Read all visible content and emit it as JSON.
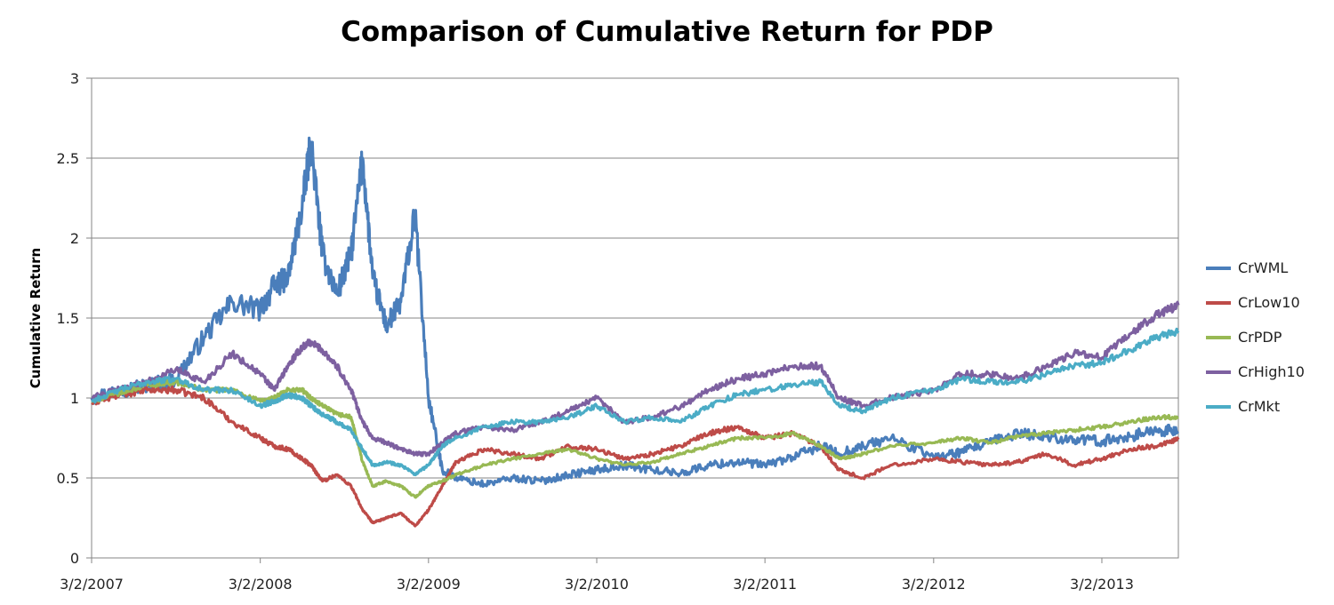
{
  "chart_data": {
    "type": "line",
    "title": "Comparison of Cumulative Return for PDP",
    "xlabel": "",
    "ylabel": "Cumulative Return",
    "x_ticks": [
      "3/2/2007",
      "3/2/2008",
      "3/2/2009",
      "3/2/2010",
      "3/2/2011",
      "3/2/2012",
      "3/2/2013"
    ],
    "x_range": [
      "3/2/2007",
      "8/15/2013"
    ],
    "y_ticks": [
      "0",
      "0.5",
      "1",
      "1.5",
      "2",
      "2.5",
      "3"
    ],
    "ylim": [
      0,
      3
    ],
    "grid": "horizontal",
    "legend_position": "right",
    "x": [
      "2007-03-02",
      "2007-05-01",
      "2007-07-01",
      "2007-09-01",
      "2007-11-01",
      "2008-01-01",
      "2008-03-02",
      "2008-04-01",
      "2008-05-01",
      "2008-06-01",
      "2008-06-20",
      "2008-07-15",
      "2008-08-15",
      "2008-09-15",
      "2008-10-10",
      "2008-11-01",
      "2008-12-01",
      "2009-01-01",
      "2009-02-01",
      "2009-03-02",
      "2009-04-01",
      "2009-05-01",
      "2009-07-01",
      "2009-09-01",
      "2009-11-01",
      "2010-01-01",
      "2010-03-02",
      "2010-05-01",
      "2010-07-01",
      "2010-09-01",
      "2010-11-01",
      "2011-01-01",
      "2011-03-02",
      "2011-05-01",
      "2011-07-01",
      "2011-08-10",
      "2011-10-01",
      "2011-12-01",
      "2012-03-02",
      "2012-05-01",
      "2012-07-01",
      "2012-09-01",
      "2012-11-01",
      "2013-01-01",
      "2013-03-02",
      "2013-05-01",
      "2013-07-01",
      "2013-08-15"
    ],
    "series": [
      {
        "name": "CrWML",
        "color": "#4a7ebb",
        "values": [
          1.0,
          1.05,
          1.08,
          1.12,
          1.38,
          1.6,
          1.55,
          1.7,
          1.75,
          2.2,
          2.6,
          1.9,
          1.65,
          1.9,
          2.5,
          1.75,
          1.45,
          1.6,
          2.15,
          1.0,
          0.55,
          0.5,
          0.46,
          0.5,
          0.48,
          0.52,
          0.55,
          0.58,
          0.55,
          0.53,
          0.58,
          0.6,
          0.58,
          0.63,
          0.7,
          0.65,
          0.7,
          0.75,
          0.63,
          0.66,
          0.72,
          0.78,
          0.76,
          0.74,
          0.73,
          0.76,
          0.8,
          0.79
        ]
      },
      {
        "name": "CrLow10",
        "color": "#be4b48",
        "values": [
          0.97,
          1.02,
          1.05,
          1.05,
          1.0,
          0.85,
          0.75,
          0.7,
          0.68,
          0.62,
          0.58,
          0.48,
          0.52,
          0.45,
          0.3,
          0.22,
          0.25,
          0.28,
          0.2,
          0.3,
          0.45,
          0.6,
          0.68,
          0.65,
          0.62,
          0.7,
          0.68,
          0.62,
          0.65,
          0.7,
          0.78,
          0.82,
          0.75,
          0.78,
          0.7,
          0.55,
          0.5,
          0.58,
          0.62,
          0.6,
          0.58,
          0.6,
          0.65,
          0.58,
          0.62,
          0.68,
          0.7,
          0.74
        ]
      },
      {
        "name": "CrPDP",
        "color": "#98b954",
        "values": [
          0.98,
          1.03,
          1.08,
          1.1,
          1.05,
          1.05,
          0.98,
          1.0,
          1.05,
          1.05,
          1.0,
          0.95,
          0.9,
          0.88,
          0.6,
          0.45,
          0.48,
          0.45,
          0.38,
          0.45,
          0.48,
          0.52,
          0.58,
          0.62,
          0.65,
          0.68,
          0.62,
          0.58,
          0.6,
          0.65,
          0.7,
          0.75,
          0.75,
          0.78,
          0.7,
          0.62,
          0.65,
          0.7,
          0.72,
          0.75,
          0.72,
          0.76,
          0.78,
          0.8,
          0.82,
          0.85,
          0.88,
          0.88
        ]
      },
      {
        "name": "CrHigh10",
        "color": "#7d60a0",
        "values": [
          1.0,
          1.06,
          1.1,
          1.18,
          1.1,
          1.28,
          1.15,
          1.05,
          1.2,
          1.32,
          1.35,
          1.3,
          1.2,
          1.05,
          0.85,
          0.75,
          0.72,
          0.68,
          0.65,
          0.65,
          0.72,
          0.78,
          0.82,
          0.8,
          0.85,
          0.92,
          1.0,
          0.85,
          0.88,
          0.95,
          1.05,
          1.12,
          1.15,
          1.2,
          1.2,
          1.0,
          0.95,
          1.0,
          1.05,
          1.15,
          1.15,
          1.12,
          1.2,
          1.28,
          1.25,
          1.4,
          1.52,
          1.58
        ]
      },
      {
        "name": "CrMkt",
        "color": "#4bacc6",
        "values": [
          0.98,
          1.05,
          1.1,
          1.12,
          1.05,
          1.05,
          0.95,
          0.98,
          1.02,
          1.0,
          0.95,
          0.9,
          0.85,
          0.8,
          0.68,
          0.58,
          0.6,
          0.58,
          0.52,
          0.58,
          0.7,
          0.75,
          0.82,
          0.85,
          0.85,
          0.88,
          0.95,
          0.85,
          0.88,
          0.85,
          0.95,
          1.02,
          1.05,
          1.08,
          1.1,
          0.95,
          0.92,
          1.0,
          1.05,
          1.12,
          1.1,
          1.1,
          1.15,
          1.2,
          1.22,
          1.3,
          1.38,
          1.42
        ]
      }
    ]
  }
}
